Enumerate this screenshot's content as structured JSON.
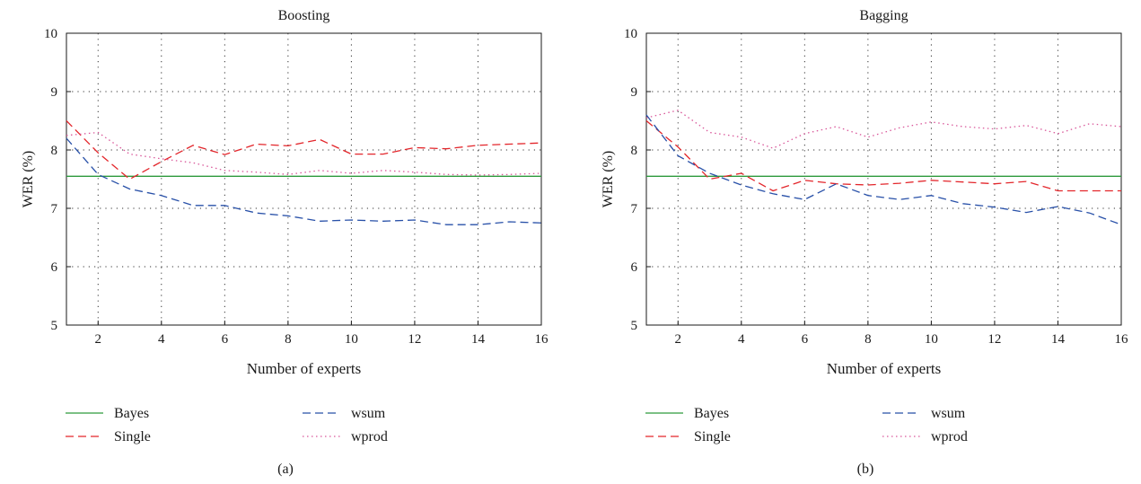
{
  "chart_data": [
    {
      "type": "line",
      "title": "Boosting",
      "caption": "(a)",
      "xlabel": "Number of experts",
      "ylabel": "WER (%)",
      "xlim": [
        1,
        16
      ],
      "ylim": [
        5,
        10
      ],
      "xticks": [
        2,
        4,
        6,
        8,
        10,
        12,
        14,
        16
      ],
      "yticks": [
        5,
        6,
        7,
        8,
        9,
        10
      ],
      "grid": true,
      "legend_position": "below",
      "x": [
        1,
        2,
        3,
        4,
        5,
        6,
        7,
        8,
        9,
        10,
        11,
        12,
        13,
        14,
        15,
        16
      ],
      "series": [
        {
          "name": "Bayes",
          "color": "#2e9a3c",
          "dash": "solid",
          "values": [
            7.55,
            7.55,
            7.55,
            7.55,
            7.55,
            7.55,
            7.55,
            7.55,
            7.55,
            7.55,
            7.55,
            7.55,
            7.55,
            7.55,
            7.55,
            7.55
          ]
        },
        {
          "name": "Single",
          "color": "#e3262b",
          "dash": "dashed",
          "values": [
            8.5,
            7.95,
            7.5,
            7.8,
            8.08,
            7.92,
            8.1,
            8.07,
            8.18,
            7.93,
            7.93,
            8.04,
            8.02,
            8.08,
            8.1,
            8.12
          ]
        },
        {
          "name": "wsum",
          "color": "#2850a8",
          "dash": "dashed",
          "values": [
            8.2,
            7.58,
            7.33,
            7.22,
            7.05,
            7.05,
            6.92,
            6.87,
            6.78,
            6.8,
            6.78,
            6.8,
            6.72,
            6.72,
            6.77,
            6.75
          ]
        },
        {
          "name": "wprod",
          "color": "#d9579a",
          "dash": "dotted",
          "values": [
            8.25,
            8.3,
            7.93,
            7.85,
            7.78,
            7.65,
            7.62,
            7.58,
            7.65,
            7.6,
            7.65,
            7.62,
            7.58,
            7.57,
            7.58,
            7.6
          ]
        }
      ]
    },
    {
      "type": "line",
      "title": "Bagging",
      "caption": "(b)",
      "xlabel": "Number of experts",
      "ylabel": "WER (%)",
      "xlim": [
        1,
        16
      ],
      "ylim": [
        5,
        10
      ],
      "xticks": [
        2,
        4,
        6,
        8,
        10,
        12,
        14,
        16
      ],
      "yticks": [
        5,
        6,
        7,
        8,
        9,
        10
      ],
      "grid": true,
      "legend_position": "below",
      "x": [
        1,
        2,
        3,
        4,
        5,
        6,
        7,
        8,
        9,
        10,
        11,
        12,
        13,
        14,
        15,
        16
      ],
      "series": [
        {
          "name": "Bayes",
          "color": "#2e9a3c",
          "dash": "solid",
          "values": [
            7.55,
            7.55,
            7.55,
            7.55,
            7.55,
            7.55,
            7.55,
            7.55,
            7.55,
            7.55,
            7.55,
            7.55,
            7.55,
            7.55,
            7.55,
            7.55
          ]
        },
        {
          "name": "Single",
          "color": "#e3262b",
          "dash": "dashed",
          "values": [
            8.5,
            8.05,
            7.5,
            7.6,
            7.3,
            7.48,
            7.42,
            7.4,
            7.43,
            7.48,
            7.45,
            7.42,
            7.46,
            7.3,
            7.3,
            7.3
          ]
        },
        {
          "name": "wsum",
          "color": "#2850a8",
          "dash": "dashed",
          "values": [
            8.6,
            7.9,
            7.6,
            7.4,
            7.25,
            7.15,
            7.42,
            7.22,
            7.15,
            7.22,
            7.08,
            7.02,
            6.93,
            7.03,
            6.92,
            6.72
          ]
        },
        {
          "name": "wprod",
          "color": "#d9579a",
          "dash": "dotted",
          "values": [
            8.55,
            8.68,
            8.3,
            8.22,
            8.03,
            8.28,
            8.4,
            8.22,
            8.38,
            8.48,
            8.4,
            8.36,
            8.42,
            8.28,
            8.45,
            8.4
          ]
        }
      ]
    }
  ]
}
